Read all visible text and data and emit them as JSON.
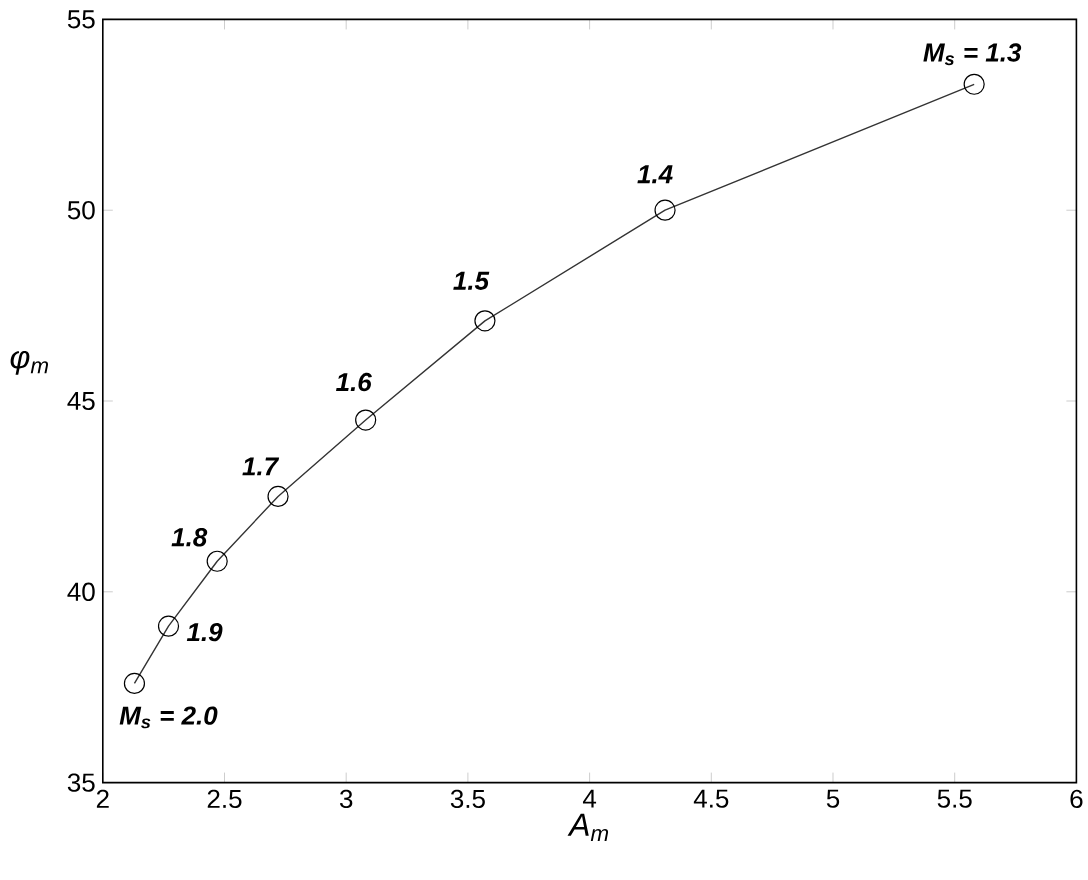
{
  "chart_data": {
    "type": "line",
    "xlabel": "A$_{m}$",
    "ylabel": "φ$_{m}$",
    "x": [
      2.13,
      2.27,
      2.47,
      2.72,
      3.08,
      3.57,
      4.31,
      5.58
    ],
    "values": [
      37.6,
      39.1,
      40.8,
      42.5,
      44.5,
      47.1,
      50.0,
      53.3
    ],
    "color": "#333333",
    "marker": "circle",
    "line_style": "solid",
    "xlim": [
      2,
      6
    ],
    "ylim": [
      35,
      55
    ],
    "xticks": [
      2,
      2.5,
      3,
      3.5,
      4,
      4.5,
      5,
      5.5,
      6
    ],
    "yticks": [
      35,
      40,
      45,
      50,
      55
    ],
    "annotations": [
      {
        "text": "M$_{s}$ = 2.0",
        "x": 2.13,
        "y": 37.6
      },
      {
        "text": "1.9",
        "x": 2.27,
        "y": 39.1
      },
      {
        "text": "1.8",
        "x": 2.47,
        "y": 40.8
      },
      {
        "text": "1.7",
        "x": 2.72,
        "y": 42.5
      },
      {
        "text": "1.6",
        "x": 3.08,
        "y": 44.5
      },
      {
        "text": "1.5",
        "x": 3.57,
        "y": 47.1
      },
      {
        "text": "1.4",
        "x": 4.31,
        "y": 50.0
      },
      {
        "text": "M$_{s}$ = 1.3",
        "x": 5.58,
        "y": 53.3
      }
    ]
  }
}
